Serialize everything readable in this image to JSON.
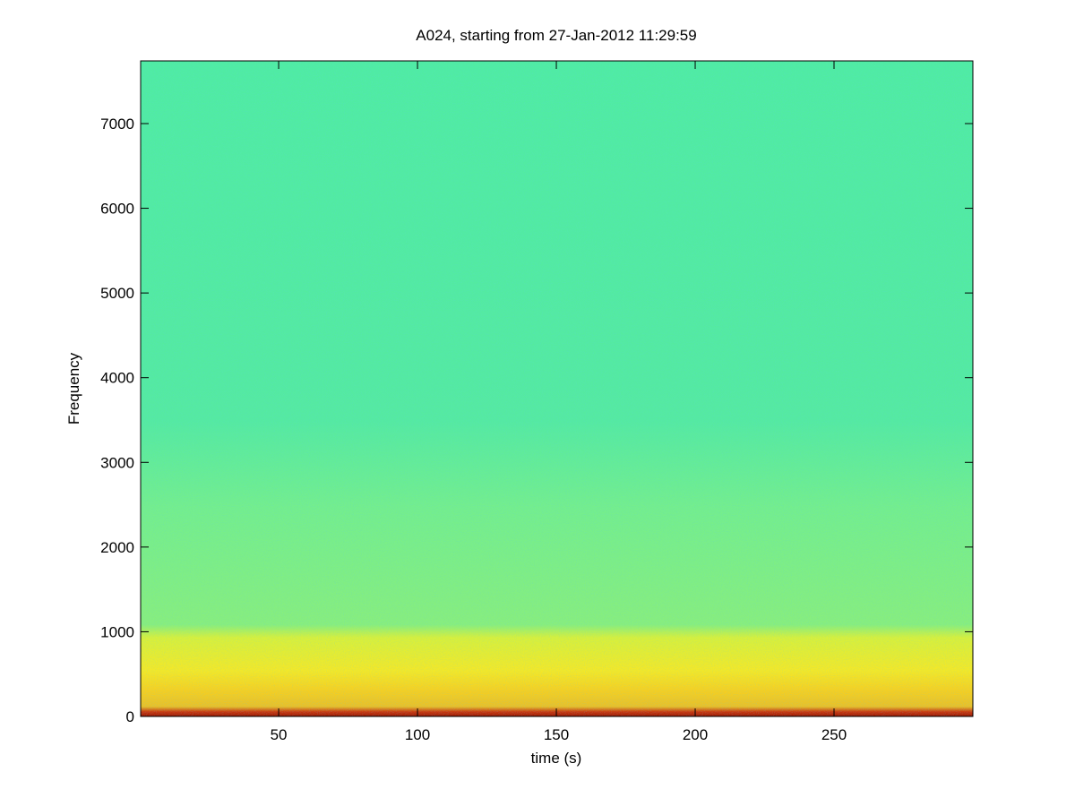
{
  "chart_data": {
    "type": "spectrogram",
    "title": "A024, starting from 27-Jan-2012 11:29:59",
    "xlabel": "time (s)",
    "ylabel": "Frequency",
    "xlim": [
      0.3,
      300
    ],
    "ylim": [
      0,
      7740
    ],
    "xticks": [
      50,
      100,
      150,
      200,
      250
    ],
    "yticks": [
      0,
      1000,
      2000,
      3000,
      4000,
      5000,
      6000,
      7000
    ],
    "box": true
  }
}
